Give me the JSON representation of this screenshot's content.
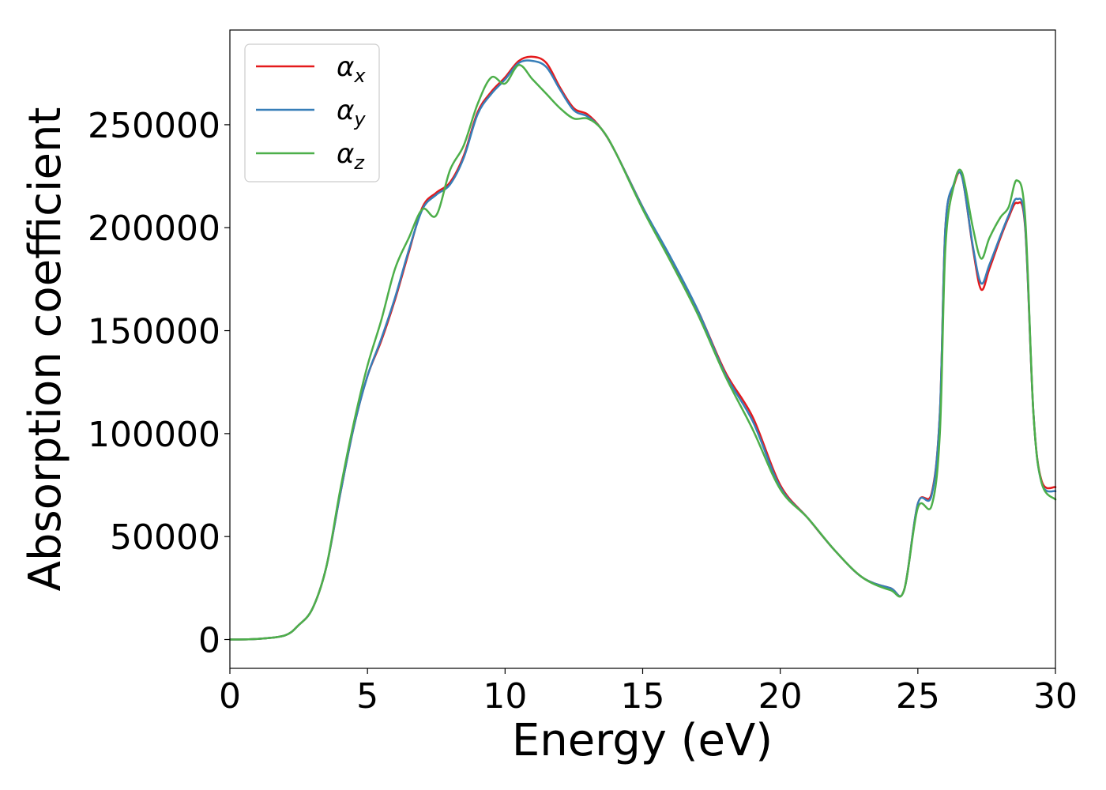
{
  "chart_data": {
    "type": "line",
    "title": "",
    "xlabel": "Energy (eV)",
    "ylabel": "Absorption coefficient",
    "xlim": [
      0,
      30
    ],
    "ylim": [
      -14000,
      296000
    ],
    "xticks": [
      0,
      5,
      10,
      15,
      20,
      25,
      30
    ],
    "xtick_labels": [
      "0",
      "5",
      "10",
      "15",
      "20",
      "25",
      "30"
    ],
    "yticks": [
      0,
      50000,
      100000,
      150000,
      200000,
      250000
    ],
    "ytick_labels": [
      "0",
      "50000",
      "100000",
      "150000",
      "200000",
      "250000"
    ],
    "grid": false,
    "legend_position": "top-left",
    "series": [
      {
        "name": "αx",
        "symbol": "α",
        "subscript": "x",
        "color": "#e41a1c",
        "x": [
          0,
          1,
          2,
          2.5,
          3,
          3.5,
          4,
          4.5,
          5,
          5.5,
          6,
          6.5,
          7,
          7.5,
          8,
          8.5,
          9,
          9.5,
          10,
          10.5,
          11,
          11.5,
          12,
          12.5,
          13,
          13.5,
          14,
          15,
          16,
          17,
          18,
          19,
          20,
          21,
          22,
          23,
          24,
          24.5,
          25,
          25.5,
          25.8,
          26,
          26.3,
          26.6,
          27,
          27.3,
          27.6,
          28,
          28.3,
          28.6,
          28.9,
          29.2,
          29.5,
          30
        ],
        "y": [
          0,
          300,
          2000,
          7000,
          15000,
          35000,
          70000,
          103000,
          128000,
          145000,
          165000,
          188000,
          210000,
          217000,
          222000,
          235000,
          256000,
          266000,
          273000,
          281000,
          283000,
          280000,
          268000,
          258000,
          255000,
          248000,
          237000,
          210000,
          185000,
          160000,
          130000,
          108000,
          75000,
          59000,
          43000,
          30000,
          25000,
          24000,
          66000,
          71000,
          110000,
          200000,
          220000,
          225000,
          190000,
          170000,
          180000,
          195000,
          205000,
          212000,
          200000,
          110000,
          77000,
          74000
        ]
      },
      {
        "name": "αy",
        "symbol": "α",
        "subscript": "y",
        "color": "#377eb8",
        "x": [
          0,
          1,
          2,
          2.5,
          3,
          3.5,
          4,
          4.5,
          5,
          5.5,
          6,
          6.5,
          7,
          7.5,
          8,
          8.5,
          9,
          9.5,
          10,
          10.5,
          11,
          11.5,
          12,
          12.5,
          13,
          13.5,
          14,
          15,
          16,
          17,
          18,
          19,
          20,
          21,
          22,
          23,
          24,
          24.5,
          25,
          25.5,
          25.8,
          26,
          26.3,
          26.6,
          27,
          27.3,
          27.6,
          28,
          28.3,
          28.6,
          28.9,
          29.2,
          29.5,
          30
        ],
        "y": [
          0,
          300,
          2000,
          7000,
          15000,
          35000,
          70000,
          103000,
          128000,
          146000,
          166000,
          189000,
          209000,
          216000,
          221000,
          234000,
          255000,
          265000,
          272000,
          280000,
          281000,
          278000,
          267000,
          257000,
          254000,
          248000,
          237000,
          210000,
          186000,
          160000,
          129000,
          106000,
          74000,
          59000,
          43000,
          30000,
          25000,
          24000,
          66000,
          70000,
          110000,
          200000,
          221000,
          225000,
          191000,
          173000,
          182000,
          196000,
          206000,
          214000,
          201000,
          110000,
          76000,
          72000
        ]
      },
      {
        "name": "αz",
        "symbol": "α",
        "subscript": "z",
        "color": "#4daf4a",
        "x": [
          0,
          1,
          2,
          2.5,
          3,
          3.5,
          4,
          4.5,
          5,
          5.5,
          6,
          6.5,
          7,
          7.5,
          8,
          8.5,
          9,
          9.5,
          10,
          10.5,
          11,
          11.5,
          12,
          12.5,
          13,
          13.5,
          14,
          15,
          16,
          17,
          18,
          19,
          20,
          21,
          22,
          23,
          24,
          24.5,
          25,
          25.5,
          25.8,
          26,
          26.3,
          26.6,
          27,
          27.3,
          27.6,
          28,
          28.3,
          28.6,
          28.9,
          29.2,
          29.5,
          30
        ],
        "y": [
          0,
          300,
          2000,
          7000,
          15000,
          35000,
          72000,
          105000,
          133000,
          155000,
          180000,
          195000,
          209000,
          206000,
          228000,
          240000,
          260000,
          273000,
          270000,
          279000,
          272000,
          265000,
          258000,
          253000,
          253000,
          248000,
          237000,
          209000,
          184000,
          158000,
          128000,
          102000,
          73000,
          59000,
          43000,
          30000,
          24000,
          24000,
          64000,
          65000,
          100000,
          190000,
          220000,
          227000,
          200000,
          185000,
          195000,
          205000,
          210000,
          223000,
          205000,
          110000,
          76000,
          68000
        ]
      }
    ]
  }
}
